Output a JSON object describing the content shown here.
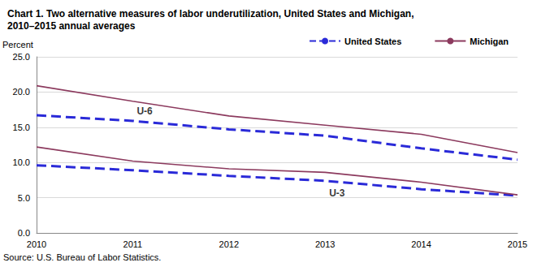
{
  "chart_data": {
    "type": "line",
    "title": "Chart 1. Two alternative measures of labor underutilization, United States and Michigan, 2010–2015 annual averages",
    "y_label": "Percent",
    "source": "Source: U.S. Bureau of Labor Statistics.",
    "categories": [
      "2010",
      "2011",
      "2012",
      "2013",
      "2014",
      "2015"
    ],
    "series": [
      {
        "name": "United States",
        "color": "#2a2ad8",
        "line_style": "dashed",
        "values": [
          16.7,
          15.9,
          14.7,
          13.8,
          12.0,
          10.4
        ]
      },
      {
        "name": "Michigan",
        "color": "#8c3a5e",
        "line_style": "solid",
        "values": [
          20.9,
          18.7,
          16.6,
          15.3,
          14.0,
          11.4
        ]
      },
      {
        "name": "United States",
        "color": "#2a2ad8",
        "line_style": "dashed",
        "values": [
          9.6,
          8.9,
          8.1,
          7.4,
          6.2,
          5.3
        ]
      },
      {
        "name": "Michigan",
        "color": "#8c3a5e",
        "line_style": "solid",
        "values": [
          12.2,
          10.2,
          9.1,
          8.6,
          7.2,
          5.4
        ]
      }
    ],
    "annotations": [
      {
        "text": "U-6",
        "x": "2011",
        "y": 17.3
      },
      {
        "text": "U-3",
        "x": "2013",
        "y": 5.6
      }
    ],
    "ylim": [
      0,
      25
    ],
    "yticks": [
      {
        "value": 0,
        "label": "0.0"
      },
      {
        "value": 5,
        "label": "5.0"
      },
      {
        "value": 10,
        "label": "10.0"
      },
      {
        "value": 15,
        "label": "15.0"
      },
      {
        "value": 20,
        "label": "20.0"
      },
      {
        "value": 25,
        "label": "25.0"
      }
    ],
    "grid": true,
    "legend": "top-right"
  }
}
